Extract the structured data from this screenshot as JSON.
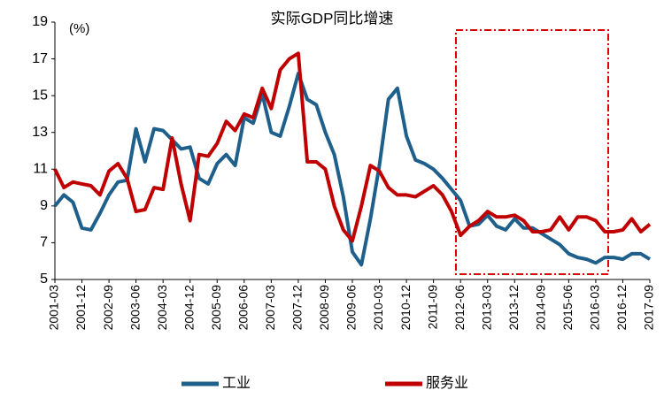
{
  "chart_data": {
    "type": "line",
    "title": "实际GDP同比增速",
    "unit_label": "(%)",
    "categories": [
      "2001-03",
      null,
      null,
      "2001-12",
      null,
      null,
      "2002-09",
      null,
      null,
      "2003-06",
      null,
      null,
      "2004-03",
      null,
      null,
      "2004-12",
      null,
      null,
      "2005-09",
      null,
      null,
      "2006-06",
      null,
      null,
      "2007-03",
      null,
      null,
      "2007-12",
      null,
      null,
      "2008-09",
      null,
      null,
      "2009-06",
      null,
      null,
      "2010-03",
      null,
      null,
      "2010-12",
      null,
      null,
      "2011-09",
      null,
      null,
      "2012-06",
      null,
      null,
      "2013-03",
      null,
      null,
      "2013-12",
      null,
      null,
      "2014-09",
      null,
      null,
      "2015-06",
      null,
      null,
      "2016-03",
      null,
      null,
      "2016-12",
      null,
      null,
      "2017-09"
    ],
    "series": [
      {
        "name": "工业",
        "color": "#1f5f8b",
        "values": [
          9.0,
          9.6,
          9.2,
          7.8,
          7.7,
          8.6,
          9.6,
          10.3,
          10.4,
          13.2,
          11.4,
          13.2,
          13.1,
          12.6,
          12.1,
          12.2,
          10.5,
          10.2,
          11.3,
          11.8,
          11.2,
          13.8,
          13.5,
          15.1,
          13.0,
          12.8,
          14.4,
          16.2,
          14.8,
          14.5,
          13.0,
          11.8,
          9.5,
          6.5,
          5.8,
          8.3,
          11.2,
          14.8,
          15.4,
          12.8,
          11.5,
          11.3,
          11.0,
          10.5,
          9.9,
          9.3,
          7.9,
          8.0,
          8.5,
          7.9,
          7.7,
          8.3,
          7.8,
          7.8,
          7.5,
          7.2,
          6.9,
          6.4,
          6.2,
          6.1,
          5.9,
          6.2,
          6.2,
          6.1,
          6.4,
          6.4,
          6.1
        ]
      },
      {
        "name": "服务业",
        "color": "#c00000",
        "values": [
          11.0,
          10.0,
          10.3,
          10.2,
          10.1,
          9.6,
          10.9,
          11.3,
          10.5,
          8.7,
          8.8,
          10.0,
          9.9,
          12.7,
          10.2,
          8.2,
          11.8,
          11.7,
          12.4,
          13.6,
          13.1,
          14.0,
          13.8,
          15.4,
          14.3,
          16.4,
          17.0,
          17.3,
          11.4,
          11.4,
          11.0,
          9.0,
          7.7,
          7.1,
          9.0,
          11.2,
          10.9,
          10.0,
          9.6,
          9.6,
          9.5,
          9.8,
          10.1,
          9.6,
          8.7,
          7.4,
          7.9,
          8.2,
          8.7,
          8.4,
          8.4,
          8.5,
          8.2,
          7.6,
          7.6,
          7.7,
          8.4,
          7.7,
          8.4,
          8.4,
          8.2,
          7.6,
          7.6,
          7.7,
          8.3,
          7.6,
          8.0
        ]
      }
    ],
    "ylim": [
      5,
      19
    ],
    "yticks": [
      5,
      7,
      9,
      11,
      13,
      15,
      17,
      19
    ],
    "grid": false,
    "legend": "bottom"
  }
}
